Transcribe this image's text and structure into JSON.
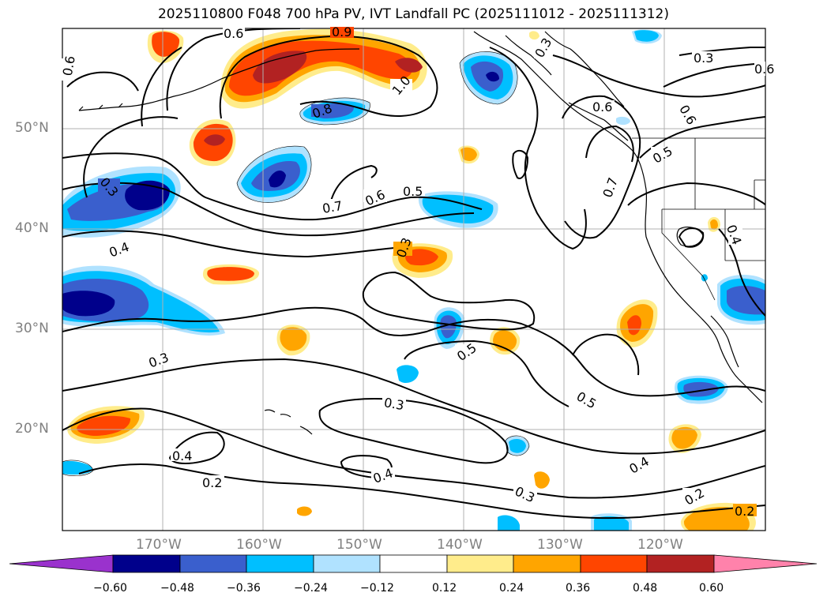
{
  "title": "2025110800 F048 700 hPa PV, IVT Landfall PC (2025111012 - 2025111312)",
  "lat_labels": [
    "50°N",
    "40°N",
    "30°N",
    "20°N"
  ],
  "lon_labels": [
    "170°W",
    "160°W",
    "150°W",
    "140°W",
    "130°W",
    "120°W"
  ],
  "colorbar": {
    "ticks": [
      "−0.60",
      "−0.48",
      "−0.36",
      "−0.24",
      "−0.12",
      "0.12",
      "0.24",
      "0.36",
      "0.48",
      "0.60"
    ],
    "colors": [
      "#9a32cd",
      "#00008b",
      "#3a5fcd",
      "#00bfff",
      "#b0e2ff",
      "#ffffff",
      "#ffec8b",
      "#ffa500",
      "#ff4500",
      "#b22222",
      "#ff82ab"
    ]
  },
  "contour_labels": [
    "0.6",
    "0.9",
    "0.3",
    "1.0",
    "0.8",
    "0.6",
    "0.6",
    "0.3",
    "0.7",
    "0.6",
    "0.5",
    "0.5",
    "0.7",
    "0.3",
    "0.4",
    "0.3",
    "0.3",
    "0.5",
    "0.5",
    "0.3",
    "0.4",
    "0.2",
    "0.4",
    "0.3",
    "0.4",
    "0.2",
    "0.2",
    "0.6",
    "0.4",
    "0.6"
  ]
}
